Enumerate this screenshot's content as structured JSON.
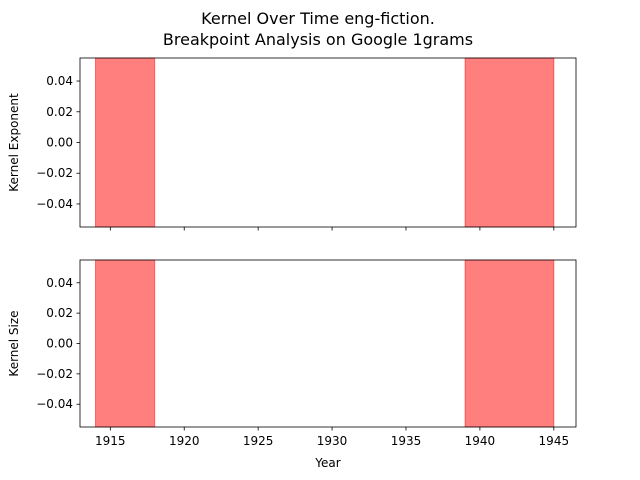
{
  "title_line1": "Kernel Over Time eng-fiction.",
  "title_line2": "Breakpoint Analysis on Google 1grams",
  "colors": {
    "span": "#ff0000",
    "axis": "#000000",
    "background": "#ffffff"
  },
  "chart_data": [
    {
      "type": "area",
      "title": "",
      "ylabel": "Kernel Exponent",
      "xlabel": "",
      "xlim": [
        1912.95,
        1946.5
      ],
      "ylim": [
        -0.055,
        0.055
      ],
      "xticks": [
        1915,
        1920,
        1925,
        1930,
        1935,
        1940,
        1945
      ],
      "xtick_labels_visible": false,
      "yticks": [
        0.04,
        0.02,
        0.0,
        -0.02,
        -0.04
      ],
      "ytick_labels": [
        "0.04",
        "0.02",
        "0.00",
        "−0.02",
        "−0.04"
      ],
      "spans": [
        {
          "start": 1914,
          "end": 1918
        },
        {
          "start": 1939,
          "end": 1945
        }
      ],
      "grid": false
    },
    {
      "type": "area",
      "title": "",
      "ylabel": "Kernel Size",
      "xlabel": "Year",
      "xlim": [
        1912.95,
        1946.5
      ],
      "ylim": [
        -0.055,
        0.055
      ],
      "xticks": [
        1915,
        1920,
        1925,
        1930,
        1935,
        1940,
        1945
      ],
      "xtick_labels": [
        "1915",
        "1920",
        "1925",
        "1930",
        "1935",
        "1940",
        "1945"
      ],
      "xtick_labels_visible": true,
      "yticks": [
        0.04,
        0.02,
        0.0,
        -0.02,
        -0.04
      ],
      "ytick_labels": [
        "0.04",
        "0.02",
        "0.00",
        "−0.02",
        "−0.04"
      ],
      "spans": [
        {
          "start": 1914,
          "end": 1918
        },
        {
          "start": 1939,
          "end": 1945
        }
      ],
      "grid": false
    }
  ]
}
